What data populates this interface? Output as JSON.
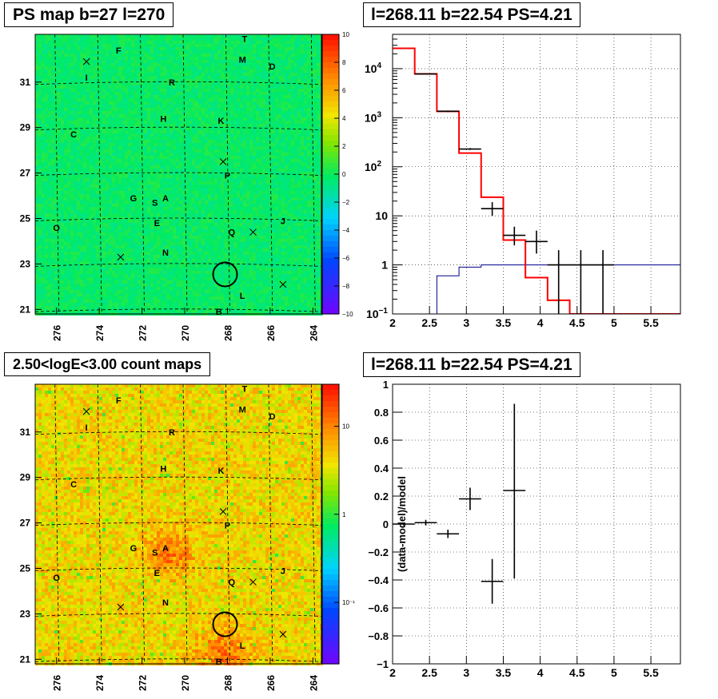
{
  "colors": {
    "axis": "#000000",
    "model_line": "#ff0000",
    "aux_line": "#00008b",
    "grid": "#000000"
  },
  "panels": {
    "psmap": {
      "title": "PS map b=27 l=270",
      "x_ticks": [
        "276",
        "274",
        "272",
        "270",
        "268",
        "266",
        "264"
      ],
      "y_ticks": [
        "31",
        "29",
        "27",
        "25",
        "23",
        "21"
      ],
      "colorbar_ticks": [
        "10",
        "8",
        "6",
        "4",
        "2",
        "0",
        "−2",
        "−4",
        "−6",
        "−8",
        "−10"
      ],
      "colorscale": "rainbow",
      "map_style": "green-noise"
    },
    "spectrum": {
      "title": "l=268.11 b=22.54 PS=4.21"
    },
    "countmap": {
      "title": "2.50<logE<3.00 count maps",
      "x_ticks": [
        "276",
        "274",
        "272",
        "270",
        "268",
        "266",
        "264"
      ],
      "y_ticks": [
        "31",
        "29",
        "27",
        "25",
        "23",
        "21"
      ],
      "colorbar_ticks": [
        "10",
        "1",
        "10⁻¹"
      ],
      "colorscale": "rainbow-log",
      "map_style": "orange-noise"
    },
    "residual": {
      "title": "l=268.11 b=22.54 PS=4.21"
    }
  },
  "source_labels": [
    {
      "text": "T",
      "l": 267.2,
      "b": 32.9
    },
    {
      "text": "F",
      "l": 273.1,
      "b": 32.4
    },
    {
      "text": "M",
      "l": 267.3,
      "b": 32.0
    },
    {
      "text": "D",
      "l": 265.9,
      "b": 31.7
    },
    {
      "text": "I",
      "l": 274.6,
      "b": 31.2
    },
    {
      "text": "R",
      "l": 270.6,
      "b": 31.0
    },
    {
      "text": "H",
      "l": 271.0,
      "b": 29.4
    },
    {
      "text": "K",
      "l": 268.3,
      "b": 29.3
    },
    {
      "text": "C",
      "l": 275.2,
      "b": 28.7
    },
    {
      "text": "P",
      "l": 268.0,
      "b": 26.9
    },
    {
      "text": "G",
      "l": 272.4,
      "b": 25.9
    },
    {
      "text": "A",
      "l": 270.9,
      "b": 25.9
    },
    {
      "text": "S",
      "l": 271.4,
      "b": 25.7
    },
    {
      "text": "E",
      "l": 271.3,
      "b": 24.8
    },
    {
      "text": "J",
      "l": 265.4,
      "b": 24.9
    },
    {
      "text": "O",
      "l": 276.0,
      "b": 24.6
    },
    {
      "text": "Q",
      "l": 267.8,
      "b": 24.4
    },
    {
      "text": "N",
      "l": 270.9,
      "b": 23.5
    },
    {
      "text": "L",
      "l": 267.3,
      "b": 21.6
    },
    {
      "text": "B",
      "l": 268.4,
      "b": 20.9
    }
  ],
  "cross_markers": [
    {
      "l": 274.6,
      "b": 31.9
    },
    {
      "l": 268.2,
      "b": 27.5
    },
    {
      "l": 266.8,
      "b": 24.4
    },
    {
      "l": 273.0,
      "b": 23.3
    },
    {
      "l": 265.4,
      "b": 22.1
    }
  ],
  "circle_marker": {
    "l": 268.11,
    "b": 22.54
  },
  "chart_data": [
    {
      "type": "heatmap",
      "title": "PS map b=27 l=270",
      "xlabel": "",
      "ylabel": "",
      "xlim": [
        277,
        263.6
      ],
      "ylim": [
        20.8,
        33.1
      ],
      "x_ticks": [
        276,
        274,
        272,
        270,
        268,
        266,
        264
      ],
      "y_ticks": [
        31,
        29,
        27,
        25,
        23,
        21
      ],
      "zlim": [
        -10,
        10
      ],
      "colorbar_ticks": [
        10,
        8,
        6,
        4,
        2,
        0,
        -2,
        -4,
        -6,
        -8,
        -10
      ],
      "grid": true
    },
    {
      "type": "line",
      "title": "l=268.11 b=22.54 PS=4.21",
      "xlabel": "",
      "ylabel": "",
      "xlim": [
        2,
        5.9
      ],
      "ylim": [
        0.1,
        50000
      ],
      "yscale": "log",
      "x_ticks": [
        2,
        2.5,
        3,
        3.5,
        4,
        4.5,
        5,
        5.5
      ],
      "y_ticks": [
        0.1,
        1,
        10,
        100,
        1000,
        10000
      ],
      "grid": true,
      "series": [
        {
          "style": "step",
          "edges": [
            2,
            2.3,
            2.6,
            2.9,
            3.2,
            3.5,
            3.8,
            4.1,
            4.4,
            5.9
          ],
          "values": [
            26000,
            7800,
            1350,
            190,
            24,
            3.2,
            0.55,
            0.19,
            0.1
          ]
        },
        {
          "style": "step",
          "edges": [
            2,
            2.3,
            2.6,
            2.9,
            3.2,
            3.5,
            3.8,
            4.1,
            4.4,
            5.9
          ],
          "values": [
            0.08,
            0.1,
            0.6,
            0.9,
            1.0,
            1.0,
            1.0,
            1.0,
            1.0
          ]
        },
        {
          "style": "errorbars",
          "x": [
            2.45,
            2.75,
            3.05,
            3.35,
            3.65,
            3.95,
            4.25,
            4.55,
            4.85
          ],
          "xerr": [
            0.15,
            0.15,
            0.15,
            0.15,
            0.15,
            0.15,
            0.15,
            0.15,
            0.15
          ],
          "y": [
            7800,
            1350,
            230,
            14,
            4,
            3,
            1,
            1,
            1
          ],
          "ylo": [
            7600,
            1300,
            220,
            10,
            2.5,
            1.7,
            0.1,
            0.1,
            0.1
          ],
          "yhi": [
            8000,
            1400,
            240,
            19,
            6,
            5,
            2,
            2,
            2
          ]
        }
      ]
    },
    {
      "type": "heatmap",
      "title": "2.50<logE<3.00 count maps",
      "xlabel": "",
      "ylabel": "",
      "xlim": [
        277,
        263.6
      ],
      "ylim": [
        20.8,
        33.1
      ],
      "x_ticks": [
        276,
        274,
        272,
        270,
        268,
        266,
        264
      ],
      "y_ticks": [
        31,
        29,
        27,
        25,
        23,
        21
      ],
      "zscale": "log",
      "zlim": [
        0.02,
        30
      ],
      "colorbar_ticks": [
        10,
        1,
        0.1
      ],
      "grid": true
    },
    {
      "type": "scatter",
      "title": "l=268.11 b=22.54 PS=4.21",
      "xlabel": "",
      "ylabel": "(data-model)/model",
      "xlim": [
        2,
        5.9
      ],
      "ylim": [
        -1,
        1
      ],
      "x_ticks": [
        2,
        2.5,
        3,
        3.5,
        4,
        4.5,
        5,
        5.5
      ],
      "y_ticks": [
        -1,
        -0.8,
        -0.6,
        -0.4,
        -0.2,
        0,
        0.2,
        0.4,
        0.6,
        0.8,
        1
      ],
      "grid": true,
      "series": [
        {
          "x": [
            2.15,
            2.45,
            2.75,
            3.05,
            3.35,
            3.65
          ],
          "xerr": [
            0.15,
            0.15,
            0.15,
            0.15,
            0.15,
            0.15
          ],
          "y": [
            0.0,
            0.01,
            -0.07,
            0.18,
            -0.41,
            0.24
          ],
          "ylo": [
            -0.01,
            -0.01,
            -0.1,
            0.1,
            -0.57,
            -0.39
          ],
          "yhi": [
            0.01,
            0.03,
            -0.04,
            0.26,
            -0.25,
            0.86
          ]
        }
      ]
    }
  ]
}
